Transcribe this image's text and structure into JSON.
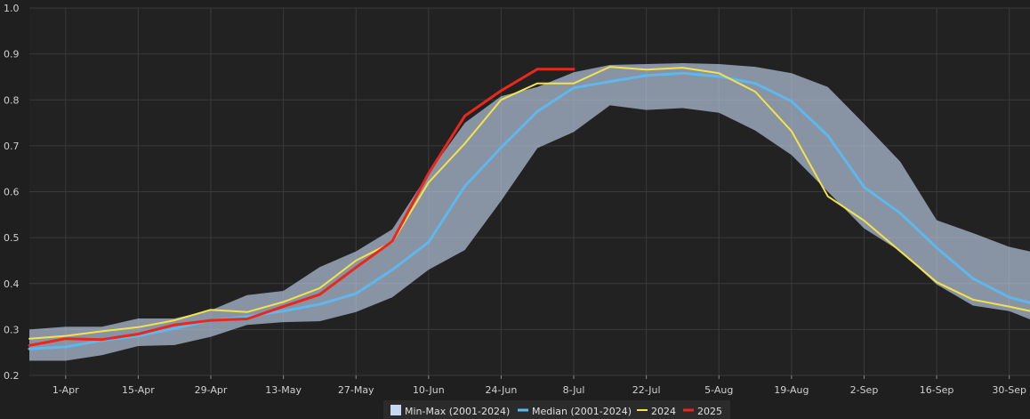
{
  "chart_data": {
    "type": "area",
    "title": "",
    "xlabel": "",
    "ylabel": "",
    "ylim": [
      0.2,
      1.0
    ],
    "y_ticks": [
      0.2,
      0.3,
      0.4,
      0.5,
      0.6,
      0.7,
      0.8,
      0.9,
      1.0
    ],
    "x_ticks": [
      "1-Apr",
      "15-Apr",
      "29-Apr",
      "13-May",
      "27-May",
      "10-Jun",
      "24-Jun",
      "8-Jul",
      "22-Jul",
      "5-Aug",
      "19-Aug",
      "2-Sep",
      "16-Sep",
      "30-Sep"
    ],
    "x_tick_days": [
      91,
      105,
      119,
      133,
      147,
      161,
      175,
      189,
      203,
      217,
      231,
      245,
      259,
      273
    ],
    "xlim_days": [
      84,
      277
    ],
    "grid": true,
    "legend_position": "bottom-center",
    "colors": {
      "band": "#c7d8f2",
      "median": "#5fb7ec",
      "y2024": "#f2e34c",
      "y2025": "#e8281e",
      "background": "#1f1f1f",
      "grid": "#3a3a3a"
    },
    "series": [
      {
        "name": "Min-Max (2001-2024)",
        "kind": "band",
        "x_days": [
          84,
          91,
          98,
          105,
          112,
          119,
          126,
          133,
          140,
          147,
          154,
          161,
          168,
          175,
          182,
          189,
          196,
          203,
          210,
          217,
          224,
          231,
          238,
          245,
          252,
          259,
          266,
          273,
          277
        ],
        "min": [
          0.232,
          0.232,
          0.244,
          0.264,
          0.266,
          0.284,
          0.31,
          0.316,
          0.318,
          0.338,
          0.37,
          0.43,
          0.473,
          0.58,
          0.695,
          0.73,
          0.788,
          0.778,
          0.782,
          0.772,
          0.733,
          0.68,
          0.6,
          0.52,
          0.47,
          0.398,
          0.352,
          0.34,
          0.322
        ],
        "max": [
          0.3,
          0.306,
          0.306,
          0.324,
          0.324,
          0.342,
          0.375,
          0.384,
          0.436,
          0.47,
          0.518,
          0.64,
          0.75,
          0.808,
          0.828,
          0.86,
          0.876,
          0.878,
          0.88,
          0.878,
          0.872,
          0.858,
          0.828,
          0.748,
          0.665,
          0.538,
          0.51,
          0.48,
          0.47
        ]
      },
      {
        "name": "Median (2001-2024)",
        "kind": "line",
        "x_days": [
          84,
          91,
          98,
          105,
          112,
          119,
          126,
          133,
          140,
          147,
          154,
          161,
          168,
          175,
          182,
          189,
          196,
          203,
          210,
          217,
          224,
          231,
          238,
          245,
          252,
          259,
          266,
          273,
          277
        ],
        "values": [
          0.258,
          0.262,
          0.276,
          0.286,
          0.302,
          0.32,
          0.328,
          0.34,
          0.355,
          0.378,
          0.43,
          0.49,
          0.612,
          0.696,
          0.775,
          0.826,
          0.84,
          0.853,
          0.858,
          0.851,
          0.836,
          0.797,
          0.722,
          0.61,
          0.553,
          0.478,
          0.411,
          0.37,
          0.358
        ]
      },
      {
        "name": "2024",
        "kind": "line",
        "x_days": [
          84,
          91,
          98,
          105,
          112,
          119,
          126,
          133,
          140,
          147,
          154,
          161,
          168,
          175,
          182,
          189,
          196,
          203,
          210,
          217,
          224,
          231,
          238,
          245,
          252,
          259,
          266,
          273,
          277
        ],
        "values": [
          0.28,
          0.286,
          0.296,
          0.305,
          0.32,
          0.343,
          0.338,
          0.36,
          0.39,
          0.45,
          0.49,
          0.62,
          0.705,
          0.8,
          0.836,
          0.836,
          0.872,
          0.866,
          0.87,
          0.858,
          0.818,
          0.732,
          0.59,
          0.537,
          0.47,
          0.403,
          0.365,
          0.35,
          0.34
        ]
      },
      {
        "name": "2025",
        "kind": "line",
        "x_days": [
          84,
          91,
          98,
          105,
          112,
          119,
          126,
          133,
          140,
          147,
          154,
          161,
          168,
          175,
          182,
          189
        ],
        "values": [
          0.265,
          0.28,
          0.278,
          0.29,
          0.31,
          0.32,
          0.323,
          0.35,
          0.376,
          0.435,
          0.492,
          0.64,
          0.765,
          0.82,
          0.867,
          0.867
        ]
      }
    ]
  }
}
